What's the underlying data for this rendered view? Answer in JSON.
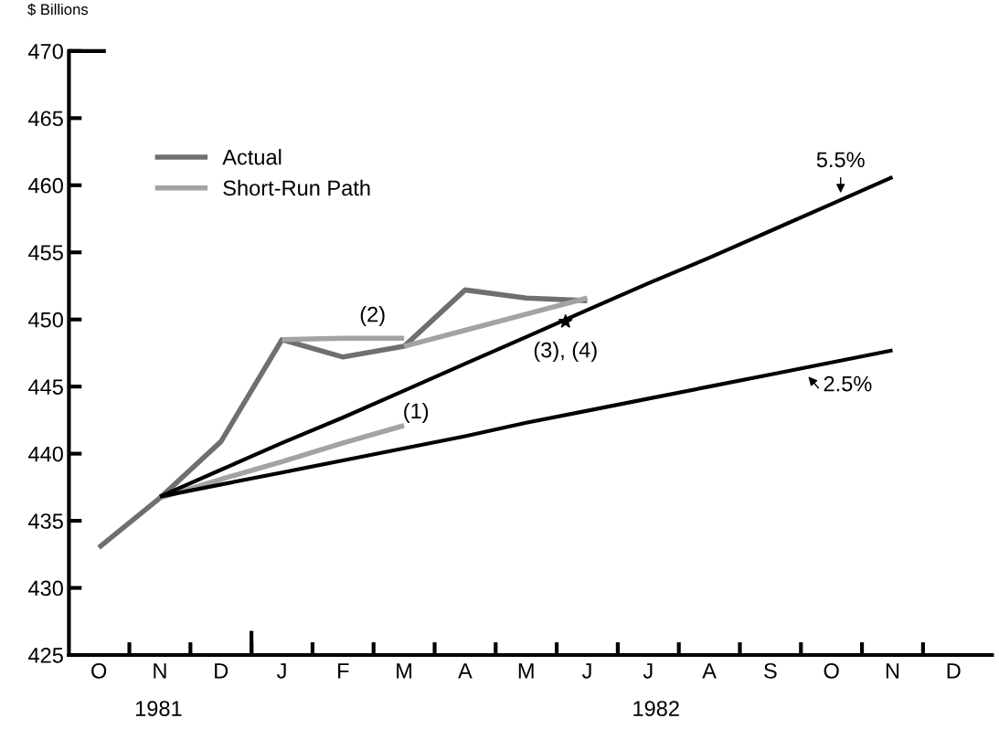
{
  "chart_data": {
    "type": "line",
    "ylabel": "$ Billions",
    "categories": [
      "O",
      "N",
      "D",
      "J",
      "F",
      "M",
      "A",
      "M",
      "J",
      "J",
      "A",
      "S",
      "O",
      "N",
      "D"
    ],
    "ylim": [
      425,
      470
    ],
    "yticks": [
      425,
      430,
      435,
      440,
      445,
      450,
      455,
      460,
      465,
      470
    ],
    "grid": false,
    "legend": "top left",
    "line_style": "solid",
    "series": [
      {
        "name": "Actual",
        "color": "#6f6f6f",
        "values": [
          433.0,
          436.7,
          440.9,
          448.5,
          447.2,
          448.0,
          452.2,
          451.6,
          451.4,
          null,
          null,
          null,
          null,
          null,
          null
        ]
      },
      {
        "name": "Short-Run Path",
        "color": "#a3a3a3",
        "values": [
          null,
          436.7,
          438.1,
          439.4,
          440.8,
          442.1,
          null,
          null,
          null,
          null,
          null,
          null,
          null,
          null,
          null
        ]
      },
      {
        "color": "#a3a3a3",
        "values": [
          null,
          null,
          null,
          448.5,
          448.6,
          448.6,
          null,
          null,
          null,
          null,
          null,
          null,
          null,
          null,
          null
        ]
      },
      {
        "color": "#a3a3a3",
        "values": [
          null,
          null,
          null,
          null,
          null,
          448.0,
          449.2,
          450.4,
          451.6,
          null,
          null,
          null,
          null,
          null,
          null
        ]
      },
      {
        "color": "#000000",
        "values": [
          null,
          436.8,
          438.8,
          440.8,
          442.7,
          444.7,
          446.7,
          448.7,
          450.7,
          452.7,
          454.6,
          456.6,
          458.6,
          460.6,
          null
        ]
      },
      {
        "color": "#000000",
        "values": [
          null,
          436.8,
          437.7,
          438.6,
          439.5,
          440.4,
          441.3,
          442.3,
          443.2,
          444.1,
          445.0,
          445.9,
          446.8,
          447.7,
          null
        ]
      }
    ],
    "annotations": [
      "5.5%",
      "2.5%",
      "(1)",
      "(2)",
      "(3), (4)",
      "1981",
      "1982"
    ]
  }
}
